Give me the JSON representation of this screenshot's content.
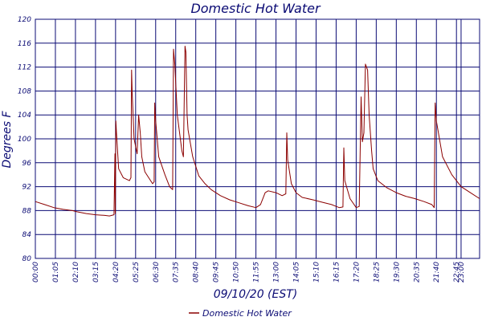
{
  "chart_data": {
    "type": "line",
    "title": "Domestic Hot Water",
    "xlabel": "09/10/20 (EST)",
    "ylabel": "Degrees F",
    "ylim": [
      80,
      120
    ],
    "yticks": [
      "80",
      "84",
      "88",
      "92",
      "96",
      "100",
      "104",
      "108",
      "112",
      "116",
      "120"
    ],
    "xlim": [
      "0:00",
      "24:00"
    ],
    "xticks": [
      "00:00",
      "01:05",
      "02:10",
      "03:15",
      "04:20",
      "05:25",
      "06:30",
      "07:35",
      "08:40",
      "09:45",
      "10:50",
      "11:55",
      "13:00",
      "14:05",
      "15:10",
      "16:15",
      "17:20",
      "18:25",
      "19:30",
      "20:35",
      "21:40",
      "22:45",
      "23:00"
    ],
    "grid": true,
    "legend_position": "bottom",
    "series": [
      {
        "name": "Domestic Hot Water",
        "color": "#8b0000",
        "x": [
          "0:00",
          "0:30",
          "1:00",
          "1:30",
          "2:00",
          "2:15",
          "2:45",
          "3:15",
          "3:45",
          "4:00",
          "4:15",
          "4:18",
          "4:19",
          "4:21",
          "4:23",
          "4:30",
          "4:45",
          "5:05",
          "5:10",
          "5:12",
          "5:14",
          "5:20",
          "5:30",
          "5:35",
          "5:40",
          "5:45",
          "5:55",
          "6:20",
          "6:25",
          "6:27",
          "6:30",
          "6:40",
          "7:00",
          "7:15",
          "7:25",
          "7:28",
          "7:32",
          "7:40",
          "7:55",
          "8:00",
          "8:05",
          "8:08",
          "8:12",
          "8:15",
          "8:30",
          "8:50",
          "9:10",
          "9:30",
          "10:00",
          "10:30",
          "11:00",
          "11:30",
          "11:55",
          "12:10",
          "12:25",
          "12:35",
          "13:00",
          "13:20",
          "13:32",
          "13:35",
          "13:38",
          "13:50",
          "14:05",
          "14:25",
          "15:00",
          "15:30",
          "16:00",
          "16:15",
          "16:25",
          "16:37",
          "16:40",
          "16:43",
          "17:00",
          "17:20",
          "17:30",
          "17:36",
          "17:40",
          "17:45",
          "17:50",
          "17:57",
          "18:02",
          "18:10",
          "18:15",
          "18:30",
          "19:00",
          "19:30",
          "20:00",
          "20:30",
          "21:00",
          "21:25",
          "21:30",
          "21:33",
          "21:36",
          "21:40",
          "22:00",
          "22:30",
          "23:00",
          "23:30",
          "24:00"
        ],
        "values": [
          89.5,
          89.0,
          88.5,
          88.2,
          88.0,
          87.8,
          87.5,
          87.3,
          87.2,
          87.1,
          87.3,
          97.5,
          87.5,
          103.0,
          101.0,
          95.0,
          93.5,
          93.0,
          93.5,
          111.5,
          107.5,
          100.0,
          97.5,
          104.0,
          101.0,
          97.0,
          94.5,
          92.5,
          92.8,
          106.0,
          103.0,
          97.0,
          94.0,
          92.0,
          91.5,
          115.0,
          112.5,
          104.0,
          98.0,
          97.0,
          115.5,
          114.5,
          104.0,
          101.5,
          97.0,
          93.8,
          92.5,
          91.5,
          90.5,
          89.8,
          89.3,
          88.8,
          88.5,
          89.0,
          91.0,
          91.3,
          91.0,
          90.5,
          90.8,
          101.0,
          96.5,
          92.5,
          91.0,
          90.2,
          89.8,
          89.4,
          89.0,
          88.7,
          88.5,
          88.6,
          98.5,
          93.0,
          90.0,
          88.5,
          88.7,
          107.0,
          99.5,
          101.0,
          112.5,
          111.5,
          104.0,
          98.0,
          95.0,
          93.0,
          91.8,
          91.0,
          90.4,
          90.0,
          89.5,
          89.0,
          88.7,
          88.5,
          106.0,
          103.0,
          97.0,
          94.0,
          92.0,
          91.0,
          90.0
        ]
      }
    ]
  }
}
